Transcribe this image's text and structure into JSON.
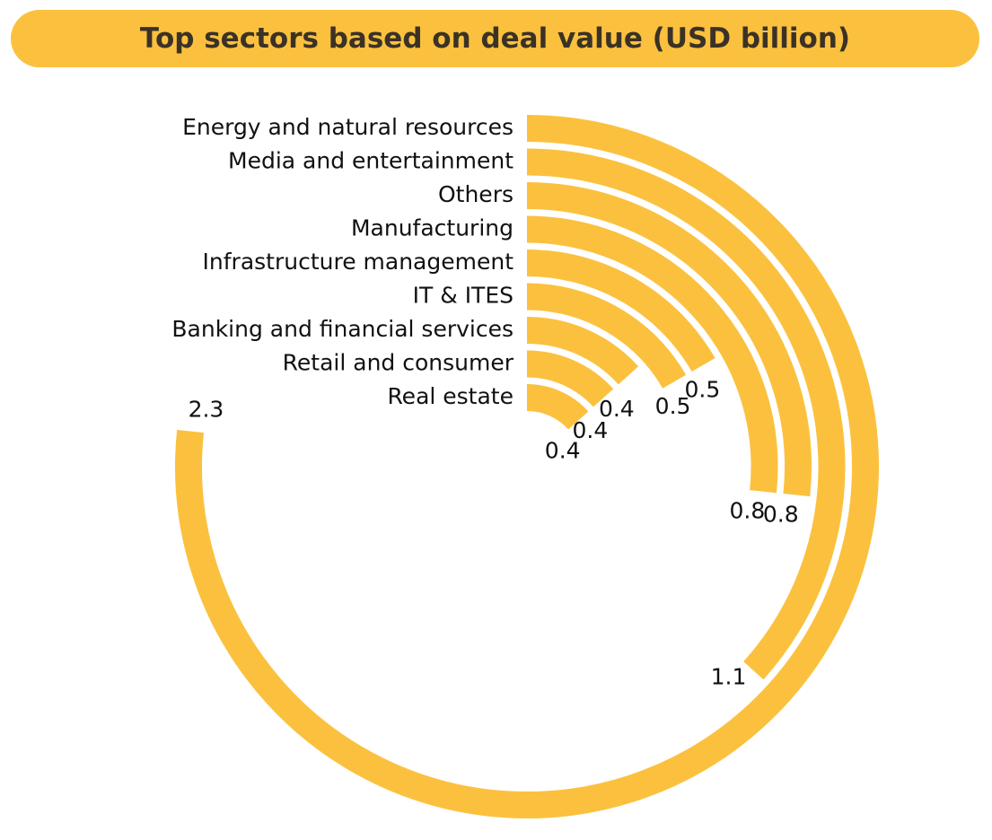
{
  "chart_data": {
    "type": "radial-bar",
    "title": "Top sectors based on deal value (USD billion)",
    "categories": [
      "Energy and natural resources",
      "Media and entertainment",
      "Others",
      "Manufacturing",
      "Infrastructure management",
      "IT & ITES",
      "Banking and financial services",
      "Retail and consumer",
      "Real estate"
    ],
    "values": [
      2.3,
      1.1,
      0.8,
      0.8,
      0.5,
      0.5,
      0.4,
      0.4,
      0.4
    ],
    "color": "#fbc13e"
  }
}
